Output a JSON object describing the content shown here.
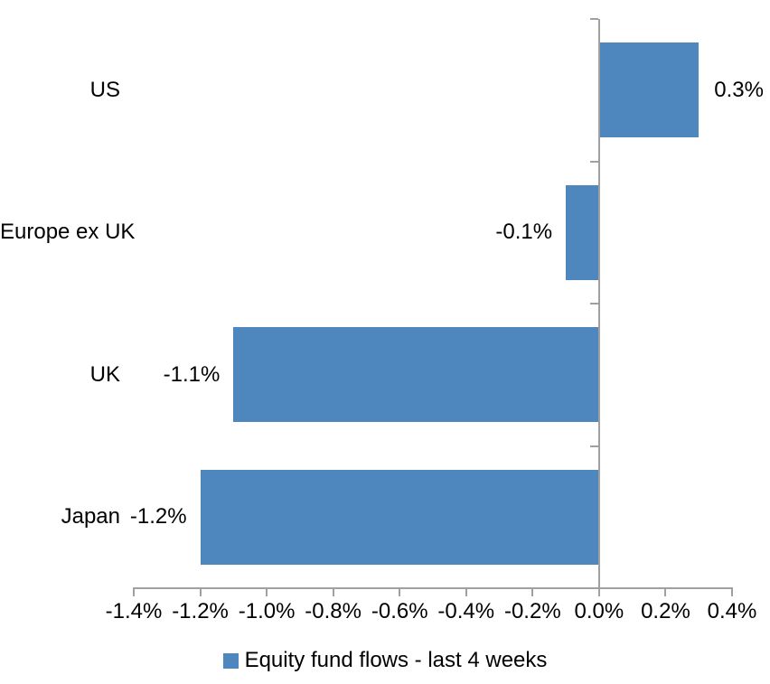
{
  "chart_data": {
    "type": "bar",
    "orientation": "horizontal",
    "title": "",
    "categories": [
      "US",
      "Europe ex UK",
      "UK",
      "Japan"
    ],
    "values": [
      0.3,
      -0.1,
      -1.1,
      -1.2
    ],
    "value_labels": [
      "0.3%",
      "-0.1%",
      "-1.1%",
      "-1.2%"
    ],
    "series_name": "Equity fund flows - last 4 weeks",
    "xlabel": "",
    "ylabel": "",
    "xlim": [
      -1.4,
      0.4
    ],
    "x_tick_values": [
      -1.4,
      -1.2,
      -1.0,
      -0.8,
      -0.6,
      -0.4,
      -0.2,
      0.0,
      0.2,
      0.4
    ],
    "x_tick_labels": [
      "-1.4%",
      "-1.2%",
      "-1.0%",
      "-0.8%",
      "-0.6%",
      "-0.4%",
      "-0.2%",
      "0.0%",
      "0.2%",
      "0.4%"
    ],
    "grid": false,
    "legend_position": "bottom",
    "legend": "Equity fund flows - last 4 weeks",
    "bar_color": "#4e86be",
    "axis_color": "#a0a0a0",
    "text_color": "#000000",
    "background_color": "#ffffff"
  }
}
